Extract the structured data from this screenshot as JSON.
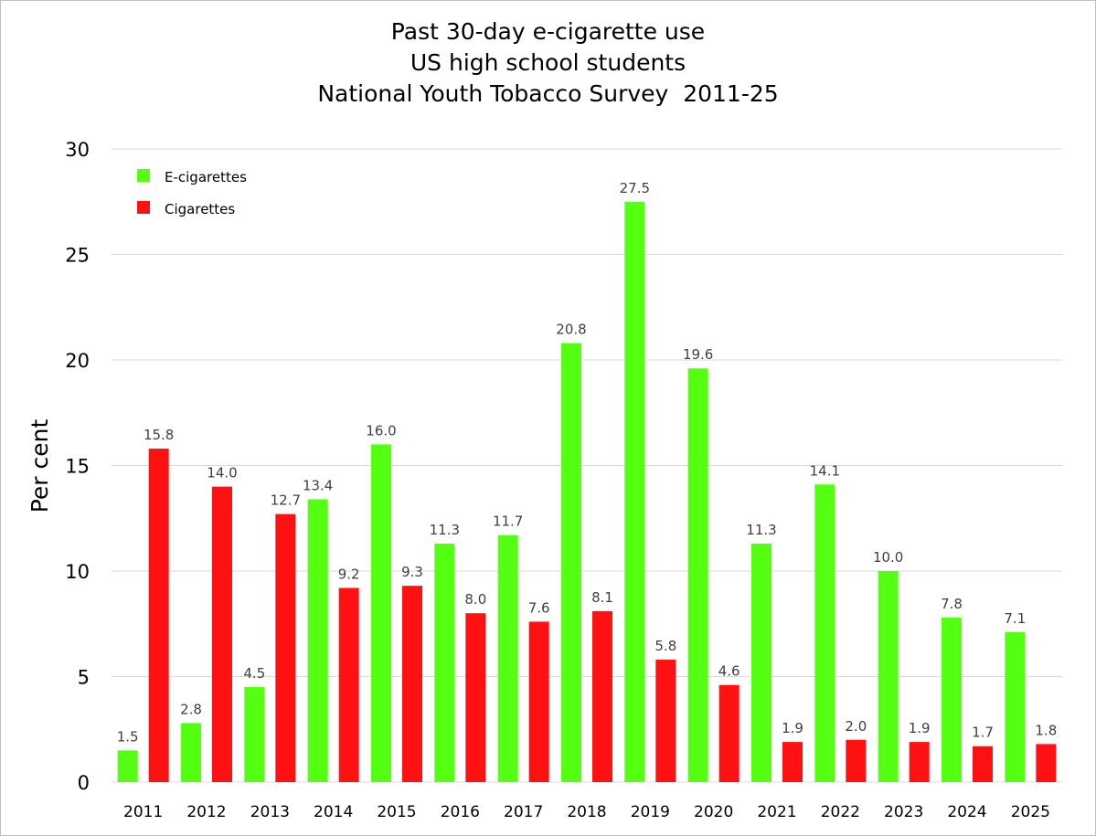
{
  "colors": {
    "e_cigarettes": "#55ff11",
    "cigarettes": "#ff1111",
    "gridline": "#d9d9d9",
    "data_label": "#404040"
  },
  "chart_data": {
    "type": "bar",
    "title": [
      "Past 30-day e-cigarette use",
      "US high school students",
      "National Youth Tobacco Survey  2011-25"
    ],
    "ylabel": "Per cent",
    "xlabel": "",
    "ylim": [
      0,
      30
    ],
    "yticks": [
      0,
      5,
      10,
      15,
      20,
      25,
      30
    ],
    "grid": true,
    "legend_position": "top-left",
    "categories": [
      "2011",
      "2012",
      "2013",
      "2014",
      "2015",
      "2016",
      "2017",
      "2018",
      "2019",
      "2020",
      "2021",
      "2022",
      "2023",
      "2024",
      "2025"
    ],
    "series": [
      {
        "name": "E-cigarettes",
        "color": "#55ff11",
        "values": [
          1.5,
          2.8,
          4.5,
          13.4,
          16.0,
          11.3,
          11.7,
          20.8,
          27.5,
          19.6,
          11.3,
          14.1,
          10.0,
          7.8,
          7.1
        ],
        "labels": [
          "1.5",
          "2.8",
          "4.5",
          "13.4",
          "16.0",
          "11.3",
          "11.7",
          "20.8",
          "27.5",
          "19.6",
          "11.3",
          "14.1",
          "10.0",
          "7.8",
          "7.1"
        ]
      },
      {
        "name": "Cigarettes",
        "color": "#ff1111",
        "values": [
          15.8,
          14.0,
          12.7,
          9.2,
          9.3,
          8.0,
          7.6,
          8.1,
          5.8,
          4.6,
          1.9,
          2.0,
          1.9,
          1.7,
          1.8
        ],
        "labels": [
          "15.8",
          "14.0",
          "12.7",
          "9.2",
          "9.3",
          "8.0",
          "7.6",
          "8.1",
          "5.8",
          "4.6",
          "1.9",
          "2.0",
          "1.9",
          "1.7",
          "1.8"
        ]
      }
    ]
  }
}
